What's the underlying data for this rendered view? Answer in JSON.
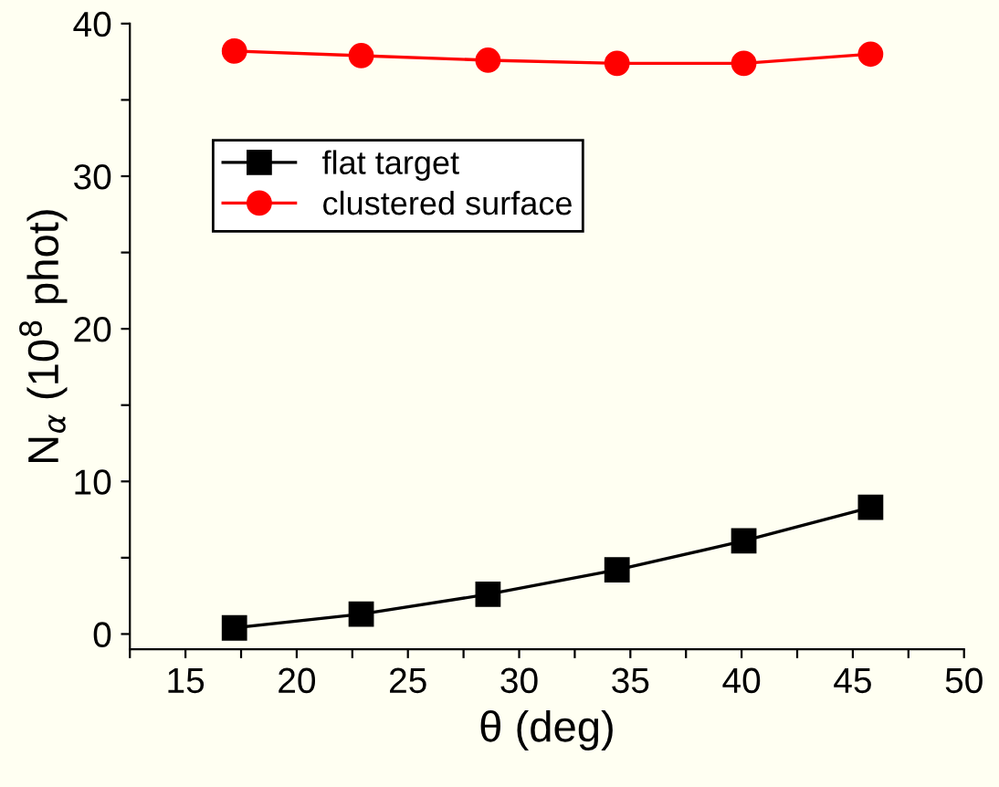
{
  "chart_data": {
    "type": "line",
    "xlabel": "θ (deg)",
    "ylabel": "N$_{α}$ (10$^{8}$ phot)",
    "x": [
      17.2,
      22.9,
      28.6,
      34.4,
      40.1,
      45.8
    ],
    "series": [
      {
        "name": "flat target",
        "color": "#000000",
        "marker": "square",
        "values": [
          0.4,
          1.3,
          2.6,
          4.2,
          6.1,
          8.3
        ]
      },
      {
        "name": "clustered surface",
        "color": "#ff0000",
        "marker": "circle",
        "values": [
          38.2,
          37.9,
          37.6,
          37.4,
          37.4,
          38.0
        ]
      }
    ],
    "xlim": [
      12.5,
      50
    ],
    "ylim": [
      -1,
      40
    ],
    "xticks": [
      {
        "value": 12.5,
        "label": null
      },
      15,
      {
        "value": 17.5,
        "label": null
      },
      20,
      {
        "value": 22.5,
        "label": null
      },
      25,
      {
        "value": 27.5,
        "label": null
      },
      30,
      {
        "value": 32.5,
        "label": null
      },
      35,
      {
        "value": 37.5,
        "label": null
      },
      40,
      {
        "value": 42.5,
        "label": null
      },
      45,
      {
        "value": 47.5,
        "label": null
      },
      50
    ],
    "yticks": [
      0,
      {
        "value": 5,
        "label": null
      },
      10,
      {
        "value": 15,
        "label": null
      },
      20,
      {
        "value": 25,
        "label": null
      },
      30,
      {
        "value": 35,
        "label": null
      },
      40
    ],
    "grid": false,
    "legend": "top left",
    "line_style": "solid"
  }
}
